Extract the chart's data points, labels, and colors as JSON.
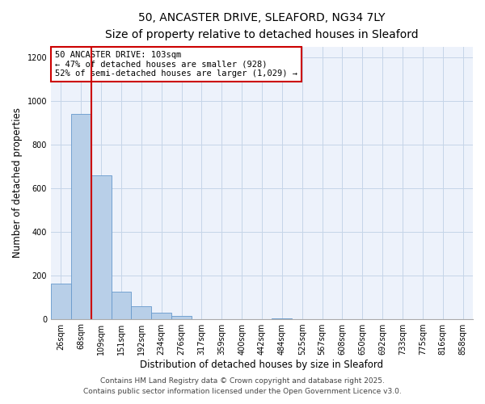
{
  "title": "50, ANCASTER DRIVE, SLEAFORD, NG34 7LY",
  "subtitle": "Size of property relative to detached houses in Sleaford",
  "xlabel": "Distribution of detached houses by size in Sleaford",
  "ylabel": "Number of detached properties",
  "bar_labels": [
    "26sqm",
    "68sqm",
    "109sqm",
    "151sqm",
    "192sqm",
    "234sqm",
    "276sqm",
    "317sqm",
    "359sqm",
    "400sqm",
    "442sqm",
    "484sqm",
    "525sqm",
    "567sqm",
    "608sqm",
    "650sqm",
    "692sqm",
    "733sqm",
    "775sqm",
    "816sqm",
    "858sqm"
  ],
  "bar_values": [
    160,
    940,
    660,
    125,
    57,
    27,
    13,
    0,
    0,
    0,
    0,
    2,
    0,
    0,
    0,
    0,
    0,
    0,
    0,
    0,
    0
  ],
  "bar_color": "#b8cfe8",
  "bar_edgecolor": "#6699cc",
  "bg_color": "#edf2fb",
  "grid_color": "#c5d5e8",
  "vline_color": "#cc0000",
  "annotation_lines": [
    "50 ANCASTER DRIVE: 103sqm",
    "← 47% of detached houses are smaller (928)",
    "52% of semi-detached houses are larger (1,029) →"
  ],
  "ylim": [
    0,
    1250
  ],
  "yticks": [
    0,
    200,
    400,
    600,
    800,
    1000,
    1200
  ],
  "footer_lines": [
    "Contains HM Land Registry data © Crown copyright and database right 2025.",
    "Contains public sector information licensed under the Open Government Licence v3.0."
  ],
  "title_fontsize": 10,
  "subtitle_fontsize": 9,
  "xlabel_fontsize": 8.5,
  "ylabel_fontsize": 8.5,
  "tick_fontsize": 7,
  "annotation_fontsize": 7.5,
  "footer_fontsize": 6.5
}
